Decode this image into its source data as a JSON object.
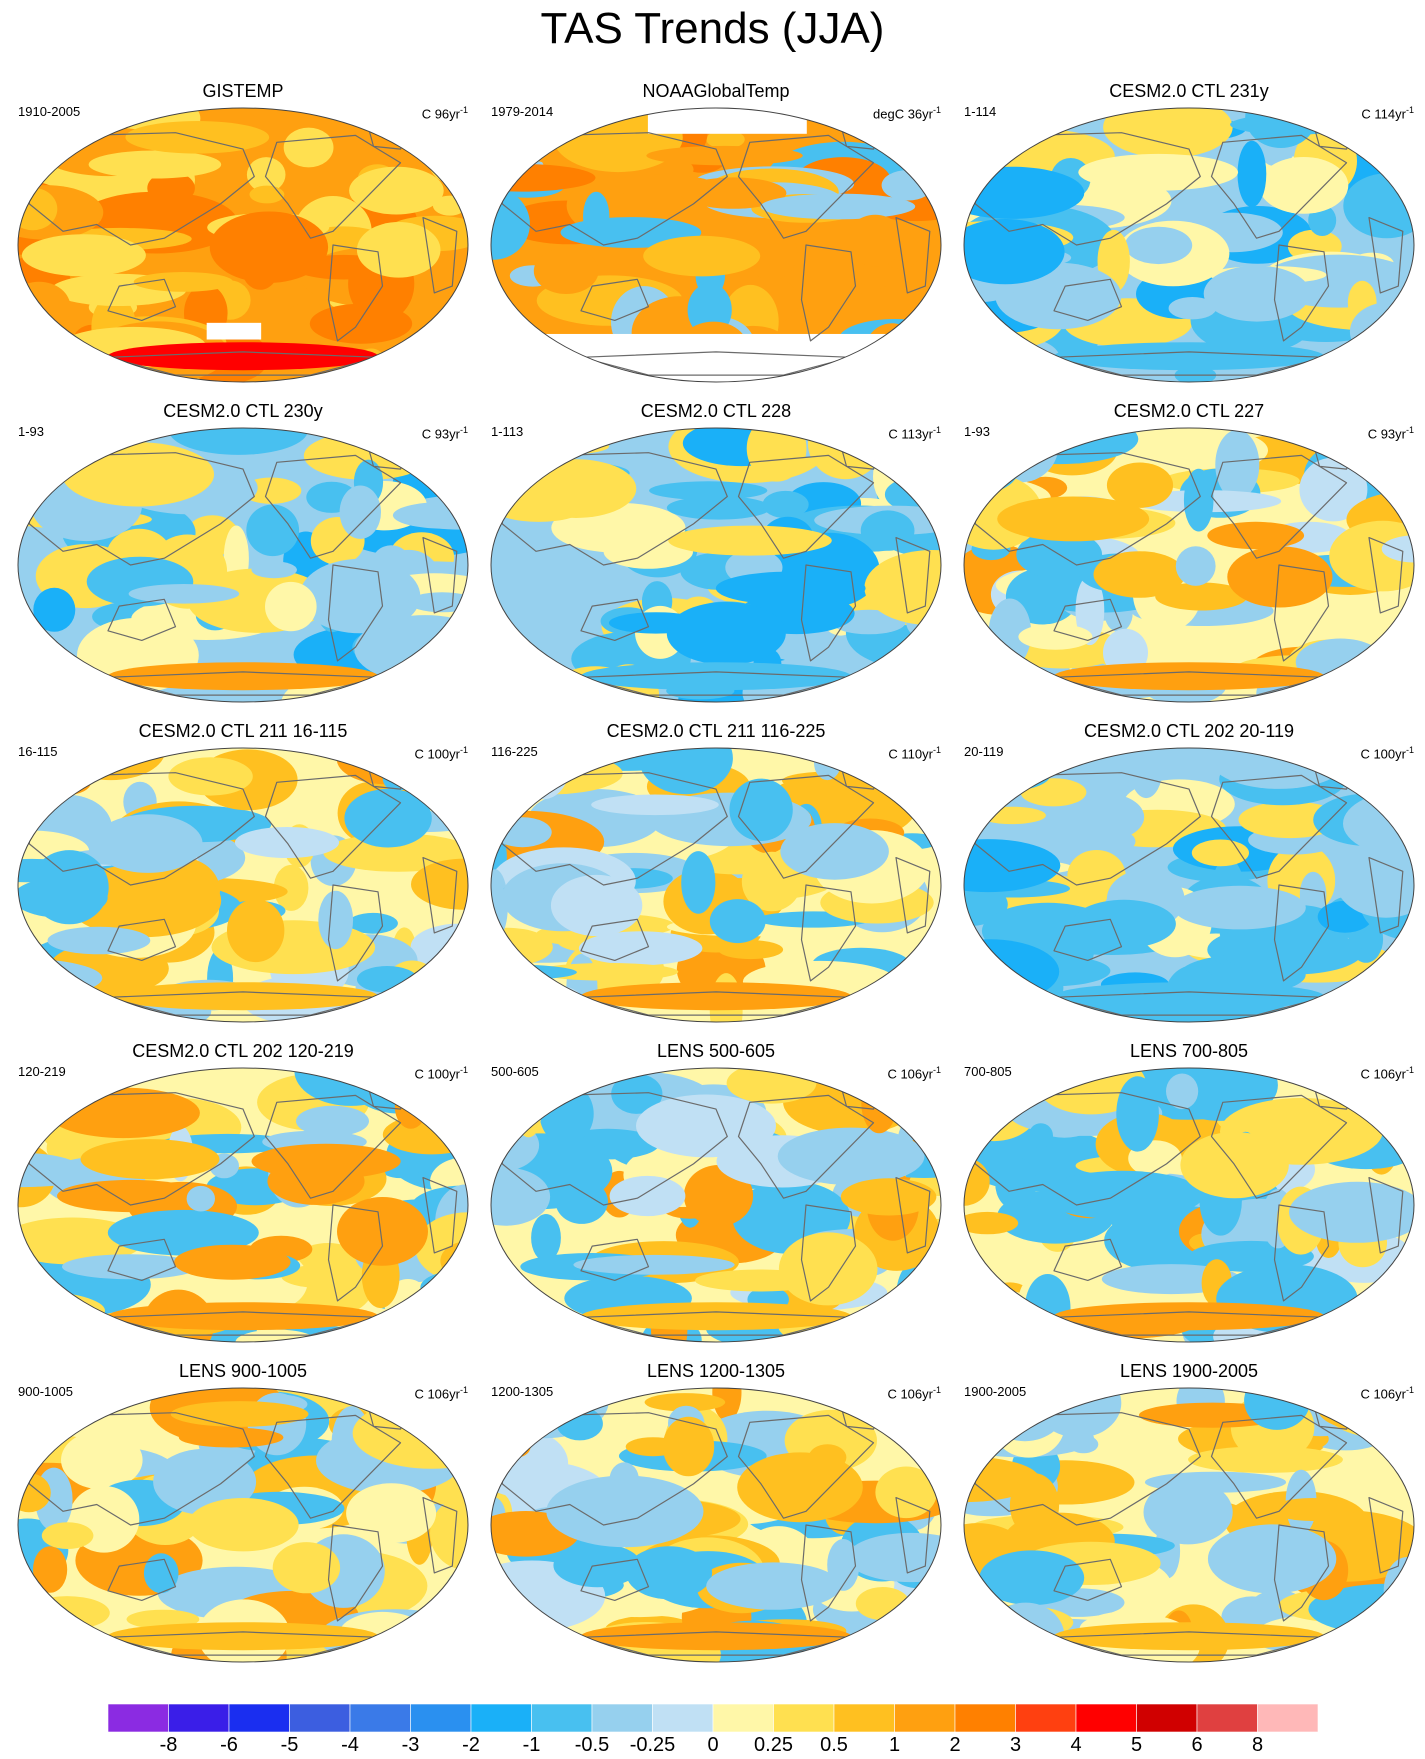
{
  "title": "TAS Trends (JJA)",
  "colors": {
    "coast": "#6b6b6b",
    "border": "#444444",
    "missing": "#ffffff"
  },
  "panels": [
    {
      "title": "GISTEMP",
      "period": "1910-2005",
      "units": "C 96yr",
      "sup": "-1",
      "base": 1,
      "mode": "warm"
    },
    {
      "title": "NOAAGlobalTemp",
      "period": "1979-2014",
      "units": "degC 36yr",
      "sup": "-1",
      "base": 1,
      "mode": "noaa"
    },
    {
      "title": "CESM2.0 CTL 231y",
      "period": "1-114",
      "units": "C 114yr",
      "sup": "-1",
      "base": -1,
      "mode": "cool"
    },
    {
      "title": "CESM2.0 CTL 230y",
      "period": "1-93",
      "units": "C 93yr",
      "sup": "-1",
      "base": -1,
      "mode": "cool"
    },
    {
      "title": "CESM2.0 CTL 228",
      "period": "1-113",
      "units": "C 113yr",
      "sup": "-1",
      "base": -1,
      "mode": "cool"
    },
    {
      "title": "CESM2.0 CTL 227",
      "period": "1-93",
      "units": "C 93yr",
      "sup": "-1",
      "base": -1,
      "mode": "mixed"
    },
    {
      "title": "CESM2.0 CTL 211 16-115",
      "period": "16-115",
      "units": "C 100yr",
      "sup": "-1",
      "base": 0,
      "mode": "mixed"
    },
    {
      "title": "CESM2.0 CTL 211 116-225",
      "period": "116-225",
      "units": "C 110yr",
      "sup": "-1",
      "base": 0,
      "mode": "mixed"
    },
    {
      "title": "CESM2.0 CTL 202 20-119",
      "period": "20-119",
      "units": "C 100yr",
      "sup": "-1",
      "base": -1,
      "mode": "cool"
    },
    {
      "title": "CESM2.0 CTL 202 120-219",
      "period": "120-219",
      "units": "C 100yr",
      "sup": "-1",
      "base": 0,
      "mode": "mixed"
    },
    {
      "title": "LENS 500-605",
      "period": "500-605",
      "units": "C 106yr",
      "sup": "-1",
      "base": 0,
      "mode": "mixed"
    },
    {
      "title": "LENS 700-805",
      "period": "700-805",
      "units": "C 106yr",
      "sup": "-1",
      "base": 0,
      "mode": "mixed"
    },
    {
      "title": "LENS 900-1005",
      "period": "900-1005",
      "units": "C 106yr",
      "sup": "-1",
      "base": 0,
      "mode": "warmish"
    },
    {
      "title": "LENS 1200-1305",
      "period": "1200-1305",
      "units": "C 106yr",
      "sup": "-1",
      "base": 0,
      "mode": "mixed"
    },
    {
      "title": "LENS 1900-2005",
      "period": "1900-2005",
      "units": "C 106yr",
      "sup": "-1",
      "base": 0,
      "mode": "warmish"
    }
  ],
  "colorbar": {
    "colors": [
      "#8b2be2",
      "#3a1ee8",
      "#1a2ef0",
      "#3c5ee0",
      "#3a7ae8",
      "#2a90f0",
      "#1ab0f8",
      "#48c0f0",
      "#96d0ee",
      "#c0e0f4",
      "#fff7a8",
      "#ffe050",
      "#ffc020",
      "#ffa010",
      "#ff8000",
      "#ff4010",
      "#ff0000",
      "#d00000",
      "#e04040",
      "#ffb8b8"
    ],
    "labels": [
      "-8",
      "-6",
      "-5",
      "-4",
      "-3",
      "-2",
      "-1",
      "-0.5",
      "-0.25",
      "0",
      "0.25",
      "0.5",
      "1",
      "2",
      "3",
      "4",
      "5",
      "6",
      "8"
    ]
  }
}
